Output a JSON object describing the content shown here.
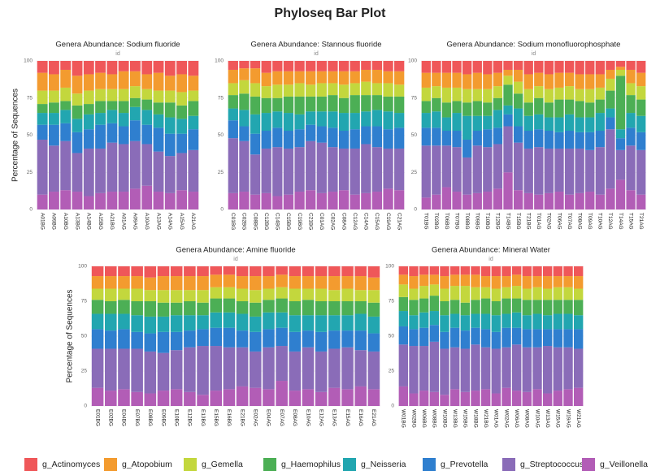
{
  "title": "Phyloseq Bar Plot",
  "chart_data": [
    {
      "type": "bar",
      "stacked": true,
      "title": "Genera Abundance: Sodium fluoride",
      "x_label": "id",
      "y_label": "Percentage of Sequences",
      "categories": [
        "A01BG",
        "A09BG",
        "A10BG",
        "A13BG",
        "A14BG",
        "A15BG",
        "A21BG",
        "A01AG",
        "A09AG",
        "A10AG",
        "A13AG",
        "A14AG",
        "A15AG",
        "A21AG"
      ],
      "ylim": [
        0,
        100
      ],
      "yticks": [
        0,
        25,
        50,
        75,
        100
      ],
      "grid": true,
      "series": [
        {
          "name": "g_Actinomyces",
          "color": "#ef5759",
          "values": [
            8,
            9,
            6,
            10,
            9,
            8,
            9,
            7,
            7,
            9,
            8,
            10,
            9,
            10
          ]
        },
        {
          "name": "g_Atopobium",
          "color": "#f39b2f",
          "values": [
            12,
            11,
            12,
            12,
            11,
            11,
            10,
            12,
            10,
            10,
            12,
            10,
            12,
            10
          ]
        },
        {
          "name": "g_Gemella",
          "color": "#c3d73d",
          "values": [
            9,
            8,
            9,
            8,
            9,
            8,
            8,
            8,
            8,
            7,
            8,
            8,
            9,
            7
          ]
        },
        {
          "name": "g_Haemophilus",
          "color": "#4caf55",
          "values": [
            6,
            7,
            6,
            9,
            7,
            8,
            6,
            8,
            6,
            7,
            8,
            10,
            9,
            10
          ]
        },
        {
          "name": "g_Neisseria",
          "color": "#22a6b0",
          "values": [
            8,
            8,
            9,
            9,
            10,
            8,
            9,
            9,
            9,
            10,
            9,
            11,
            10,
            9
          ]
        },
        {
          "name": "g_Prevotella",
          "color": "#2f7fcf",
          "values": [
            10,
            14,
            12,
            14,
            13,
            16,
            13,
            12,
            14,
            13,
            16,
            15,
            13,
            14
          ]
        },
        {
          "name": "g_Streptococcus",
          "color": "#8a6cb8",
          "values": [
            37,
            31,
            33,
            26,
            32,
            30,
            33,
            32,
            32,
            28,
            27,
            25,
            25,
            28
          ]
        },
        {
          "name": "g_Veillonella",
          "color": "#b25db6",
          "values": [
            10,
            12,
            13,
            12,
            9,
            11,
            12,
            12,
            14,
            16,
            12,
            11,
            13,
            12
          ]
        }
      ]
    },
    {
      "type": "bar",
      "stacked": true,
      "title": "Genera Abundance: Stannous fluoride",
      "x_label": "id",
      "categories": [
        "C01BG",
        "C02BG",
        "C08BG",
        "C12BG",
        "C14BG",
        "C15BG",
        "C19BG",
        "C21BG",
        "C01AG",
        "C02AG",
        "C08AG",
        "C12AG",
        "C14AG",
        "C15AG",
        "C19AG",
        "C21AG"
      ],
      "ylim": [
        0,
        100
      ],
      "yticks": [
        0,
        25,
        50,
        75,
        100
      ],
      "grid": true,
      "series": [
        {
          "name": "g_Actinomyces",
          "color": "#ef5759",
          "values": [
            6,
            5,
            5,
            8,
            7,
            7,
            7,
            7,
            7,
            7,
            7,
            7,
            6,
            6,
            7,
            7
          ]
        },
        {
          "name": "g_Atopobium",
          "color": "#f39b2f",
          "values": [
            9,
            8,
            10,
            9,
            9,
            9,
            8,
            9,
            8,
            8,
            9,
            8,
            8,
            9,
            8,
            9
          ]
        },
        {
          "name": "g_Gemella",
          "color": "#c3d73d",
          "values": [
            8,
            9,
            9,
            8,
            9,
            8,
            9,
            8,
            9,
            8,
            9,
            8,
            9,
            8,
            9,
            8
          ]
        },
        {
          "name": "g_Haemophilus",
          "color": "#4caf55",
          "values": [
            9,
            11,
            12,
            10,
            9,
            11,
            12,
            10,
            10,
            11,
            10,
            12,
            11,
            10,
            10,
            11
          ]
        },
        {
          "name": "g_Neisseria",
          "color": "#22a6b0",
          "values": [
            8,
            11,
            13,
            12,
            11,
            12,
            10,
            9,
            10,
            11,
            12,
            11,
            10,
            11,
            12,
            10
          ]
        },
        {
          "name": "g_Prevotella",
          "color": "#2f7fcf",
          "values": [
            12,
            10,
            14,
            12,
            13,
            12,
            12,
            11,
            11,
            13,
            12,
            13,
            12,
            14,
            13,
            14
          ]
        },
        {
          "name": "g_Streptococcus",
          "color": "#8a6cb8",
          "values": [
            37,
            34,
            27,
            30,
            33,
            31,
            30,
            33,
            34,
            30,
            28,
            31,
            33,
            30,
            27,
            28
          ]
        },
        {
          "name": "g_Veillonella",
          "color": "#b25db6",
          "values": [
            11,
            12,
            10,
            11,
            9,
            10,
            12,
            13,
            11,
            12,
            13,
            10,
            11,
            12,
            14,
            13
          ]
        }
      ]
    },
    {
      "type": "bar",
      "stacked": true,
      "title": "Genera Abundance: Sodium monofluorophosphate",
      "x_label": "id",
      "categories": [
        "T01BG",
        "T02BG",
        "T06BG",
        "T07BG",
        "T08BG",
        "T09BG",
        "T10BG",
        "T12BG",
        "T14BG",
        "T15BG",
        "T21BG",
        "T01AG",
        "T02AG",
        "T06AG",
        "T07AG",
        "T08AG",
        "T09AG",
        "T10AG",
        "T12AG",
        "T14AG",
        "T15AG",
        "T21AG"
      ],
      "ylim": [
        0,
        100
      ],
      "yticks": [
        0,
        25,
        50,
        75,
        100
      ],
      "grid": true,
      "series": [
        {
          "name": "g_Actinomyces",
          "color": "#ef5759",
          "values": [
            8,
            8,
            8,
            8,
            9,
            8,
            9,
            8,
            6,
            6,
            9,
            8,
            9,
            8,
            8,
            9,
            9,
            9,
            6,
            4,
            6,
            8
          ]
        },
        {
          "name": "g_Atopobium",
          "color": "#f39b2f",
          "values": [
            10,
            9,
            10,
            10,
            10,
            11,
            10,
            9,
            4,
            8,
            10,
            9,
            10,
            10,
            9,
            10,
            10,
            9,
            6,
            2,
            9,
            9
          ]
        },
        {
          "name": "g_Gemella",
          "color": "#c3d73d",
          "values": [
            9,
            8,
            10,
            9,
            9,
            8,
            9,
            8,
            6,
            8,
            9,
            8,
            9,
            8,
            9,
            8,
            9,
            8,
            8,
            4,
            8,
            9
          ]
        },
        {
          "name": "g_Haemophilus",
          "color": "#4caf55",
          "values": [
            8,
            9,
            10,
            8,
            9,
            10,
            9,
            8,
            14,
            10,
            9,
            11,
            10,
            12,
            10,
            11,
            10,
            9,
            12,
            36,
            12,
            11
          ]
        },
        {
          "name": "g_Neisseria",
          "color": "#22a6b0",
          "values": [
            10,
            11,
            9,
            12,
            16,
            10,
            9,
            12,
            6,
            12,
            10,
            10,
            9,
            10,
            11,
            10,
            10,
            12,
            6,
            6,
            10,
            11
          ]
        },
        {
          "name": "g_Prevotella",
          "color": "#2f7fcf",
          "values": [
            12,
            12,
            10,
            11,
            12,
            10,
            12,
            11,
            8,
            11,
            12,
            12,
            12,
            11,
            12,
            11,
            12,
            11,
            8,
            8,
            12,
            12
          ]
        },
        {
          "name": "g_Streptococcus",
          "color": "#8a6cb8",
          "values": [
            35,
            33,
            28,
            30,
            25,
            32,
            30,
            30,
            31,
            32,
            30,
            32,
            30,
            29,
            31,
            30,
            28,
            32,
            40,
            20,
            30,
            30
          ]
        },
        {
          "name": "g_Veillonella",
          "color": "#b25db6",
          "values": [
            8,
            10,
            15,
            12,
            10,
            11,
            12,
            14,
            25,
            13,
            11,
            10,
            11,
            12,
            10,
            11,
            12,
            10,
            14,
            20,
            13,
            10
          ]
        }
      ]
    },
    {
      "type": "bar",
      "stacked": true,
      "title": "Genera Abundance: Amine fluoride",
      "x_label": "id",
      "y_label": "Percentage of Sequences",
      "categories": [
        "E01BG",
        "E02BG",
        "E04BG",
        "E07BG",
        "E08BG",
        "E09BG",
        "E10BG",
        "E12BG",
        "E13BG",
        "E15BG",
        "E16BG",
        "E21BG",
        "E02AG",
        "E04AG",
        "E07AG",
        "E08AG",
        "E10AG",
        "E12AG",
        "E13AG",
        "E15AG",
        "E16AG",
        "E21AG"
      ],
      "ylim": [
        0,
        100
      ],
      "yticks": [
        0,
        25,
        50,
        75,
        100
      ],
      "grid": true,
      "series": [
        {
          "name": "g_Actinomyces",
          "color": "#ef5759",
          "values": [
            7,
            7,
            7,
            7,
            8,
            7,
            7,
            7,
            7,
            6,
            6,
            7,
            7,
            7,
            6,
            7,
            7,
            7,
            7,
            7,
            7,
            8
          ]
        },
        {
          "name": "g_Atopobium",
          "color": "#f39b2f",
          "values": [
            9,
            9,
            9,
            9,
            9,
            10,
            10,
            10,
            10,
            9,
            9,
            9,
            10,
            9,
            9,
            9,
            9,
            9,
            10,
            9,
            10,
            9
          ]
        },
        {
          "name": "g_Gemella",
          "color": "#c3d73d",
          "values": [
            8,
            9,
            8,
            9,
            8,
            9,
            9,
            8,
            9,
            8,
            8,
            9,
            9,
            8,
            8,
            9,
            8,
            9,
            8,
            9,
            8,
            9
          ]
        },
        {
          "name": "g_Haemophilus",
          "color": "#4caf55",
          "values": [
            10,
            9,
            10,
            10,
            11,
            10,
            9,
            10,
            9,
            10,
            10,
            9,
            10,
            9,
            10,
            10,
            11,
            10,
            10,
            10,
            9,
            10
          ]
        },
        {
          "name": "g_Neisseria",
          "color": "#22a6b0",
          "values": [
            11,
            12,
            11,
            12,
            12,
            11,
            12,
            11,
            10,
            11,
            11,
            12,
            11,
            12,
            11,
            12,
            11,
            12,
            11,
            11,
            12,
            12
          ]
        },
        {
          "name": "g_Prevotella",
          "color": "#2f7fcf",
          "values": [
            14,
            13,
            14,
            12,
            13,
            15,
            13,
            12,
            12,
            13,
            14,
            12,
            14,
            13,
            13,
            14,
            12,
            14,
            13,
            12,
            14,
            13
          ]
        },
        {
          "name": "g_Streptococcus",
          "color": "#8a6cb8",
          "values": [
            28,
            30,
            29,
            31,
            30,
            27,
            28,
            32,
            35,
            32,
            30,
            28,
            26,
            30,
            25,
            28,
            30,
            29,
            28,
            30,
            26,
            27
          ]
        },
        {
          "name": "g_Veillonella",
          "color": "#b25db6",
          "values": [
            13,
            11,
            12,
            10,
            9,
            11,
            12,
            10,
            8,
            11,
            12,
            14,
            13,
            12,
            18,
            11,
            12,
            10,
            13,
            12,
            14,
            12
          ]
        }
      ]
    },
    {
      "type": "bar",
      "stacked": true,
      "title": "Genera Abundance: Mineral Water",
      "x_label": "id",
      "categories": [
        "W01BG",
        "W02BG",
        "W06BG",
        "W08BG",
        "W10BG",
        "W13BG",
        "W15BG",
        "W18BG",
        "W21BG",
        "W01AG",
        "W02AG",
        "W06AG",
        "W08AG",
        "W10AG",
        "W13AG",
        "W15AG",
        "W19AG",
        "W21AG"
      ],
      "ylim": [
        0,
        100
      ],
      "yticks": [
        0,
        25,
        50,
        75,
        100
      ],
      "grid": true,
      "series": [
        {
          "name": "g_Actinomyces",
          "color": "#ef5759",
          "values": [
            6,
            7,
            6,
            6,
            7,
            6,
            6,
            6,
            7,
            7,
            7,
            6,
            7,
            7,
            7,
            7,
            7,
            7
          ]
        },
        {
          "name": "g_Atopobium",
          "color": "#f39b2f",
          "values": [
            7,
            9,
            8,
            7,
            9,
            8,
            8,
            9,
            8,
            9,
            8,
            8,
            9,
            8,
            9,
            8,
            8,
            9
          ]
        },
        {
          "name": "g_Gemella",
          "color": "#c3d73d",
          "values": [
            9,
            8,
            9,
            8,
            9,
            10,
            12,
            9,
            8,
            9,
            8,
            9,
            8,
            9,
            8,
            9,
            9,
            8
          ]
        },
        {
          "name": "g_Haemophilus",
          "color": "#4caf55",
          "values": [
            10,
            11,
            10,
            11,
            10,
            10,
            9,
            10,
            11,
            10,
            11,
            10,
            11,
            10,
            11,
            10,
            10,
            11
          ]
        },
        {
          "name": "g_Neisseria",
          "color": "#22a6b0",
          "values": [
            11,
            10,
            11,
            10,
            12,
            10,
            11,
            10,
            11,
            12,
            10,
            11,
            10,
            11,
            10,
            11,
            11,
            10
          ]
        },
        {
          "name": "g_Prevotella",
          "color": "#2f7fcf",
          "values": [
            13,
            12,
            13,
            12,
            12,
            14,
            13,
            12,
            13,
            12,
            14,
            12,
            13,
            13,
            12,
            13,
            13,
            14
          ]
        },
        {
          "name": "g_Streptococcus",
          "color": "#8a6cb8",
          "values": [
            30,
            34,
            32,
            36,
            33,
            30,
            31,
            33,
            30,
            32,
            29,
            33,
            32,
            30,
            34,
            31,
            30,
            28
          ]
        },
        {
          "name": "g_Veillonella",
          "color": "#b25db6",
          "values": [
            14,
            9,
            11,
            10,
            8,
            12,
            10,
            11,
            12,
            9,
            13,
            11,
            10,
            12,
            9,
            11,
            12,
            13
          ]
        }
      ]
    }
  ]
}
